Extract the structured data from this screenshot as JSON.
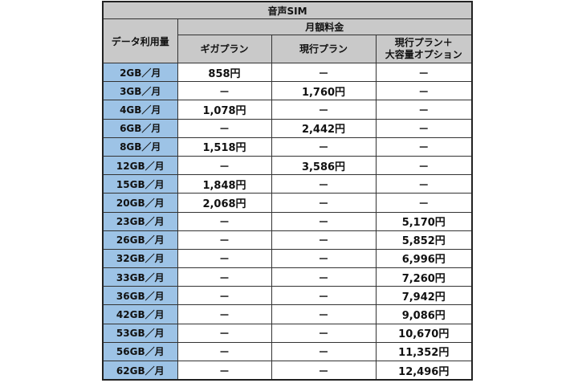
{
  "table": {
    "title": "音声SIM",
    "usage_header": "データ利用量",
    "fee_header": "月額料金",
    "plan_headers": [
      "ギガプラン",
      "現行プラン",
      "現行プラン＋",
      "大容量オプション"
    ],
    "colors": {
      "header_bg": "#c9c9c9",
      "usage_bg": "#9dc3e6"
    },
    "rows": [
      {
        "usage": "2GB／月",
        "giga": "858円",
        "current": "－",
        "option": "－"
      },
      {
        "usage": "3GB／月",
        "giga": "－",
        "current": "1,760円",
        "option": "－"
      },
      {
        "usage": "4GB／月",
        "giga": "1,078円",
        "current": "－",
        "option": "－"
      },
      {
        "usage": "6GB／月",
        "giga": "－",
        "current": "2,442円",
        "option": "－"
      },
      {
        "usage": "8GB／月",
        "giga": "1,518円",
        "current": "－",
        "option": "－"
      },
      {
        "usage": "12GB／月",
        "giga": "－",
        "current": "3,586円",
        "option": "－"
      },
      {
        "usage": "15GB／月",
        "giga": "1,848円",
        "current": "－",
        "option": "－"
      },
      {
        "usage": "20GB／月",
        "giga": "2,068円",
        "current": "－",
        "option": "－"
      },
      {
        "usage": "23GB／月",
        "giga": "－",
        "current": "－",
        "option": "5,170円"
      },
      {
        "usage": "26GB／月",
        "giga": "－",
        "current": "－",
        "option": "5,852円"
      },
      {
        "usage": "32GB／月",
        "giga": "－",
        "current": "－",
        "option": "6,996円"
      },
      {
        "usage": "33GB／月",
        "giga": "－",
        "current": "－",
        "option": "7,260円"
      },
      {
        "usage": "36GB／月",
        "giga": "－",
        "current": "－",
        "option": "7,942円"
      },
      {
        "usage": "42GB／月",
        "giga": "－",
        "current": "－",
        "option": "9,086円"
      },
      {
        "usage": "53GB／月",
        "giga": "－",
        "current": "－",
        "option": "10,670円"
      },
      {
        "usage": "56GB／月",
        "giga": "－",
        "current": "－",
        "option": "11,352円"
      },
      {
        "usage": "62GB／月",
        "giga": "－",
        "current": "－",
        "option": "12,496円"
      }
    ]
  }
}
